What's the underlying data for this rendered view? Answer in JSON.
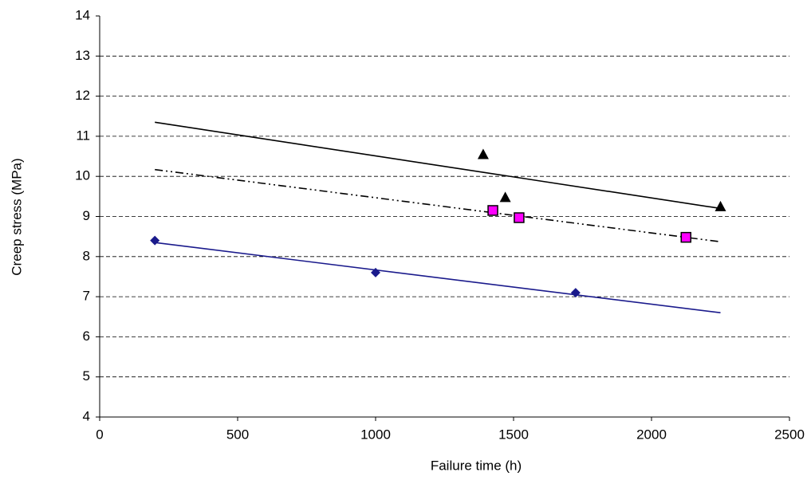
{
  "chart_data": {
    "type": "scatter",
    "x_label": "Failure time (h)",
    "y_label": "Creep stress (MPa)",
    "xlim": [
      0,
      2500
    ],
    "xticks": [
      0,
      500,
      1000,
      1500,
      2000,
      2500
    ],
    "ylim": [
      4,
      14
    ],
    "yticks": [
      4,
      5,
      6,
      7,
      8,
      9,
      10,
      11,
      12,
      13,
      14
    ],
    "grid": true,
    "series": [
      {
        "marker": "diamond",
        "color": "#1a1a8c",
        "x": [
          200,
          1000,
          1725
        ],
        "values": [
          8.4,
          7.6,
          7.1
        ],
        "trend": {
          "style": "solid",
          "color": "#1a1a8c",
          "x": [
            200,
            2250
          ],
          "values": [
            8.35,
            6.6
          ]
        }
      },
      {
        "marker": "square",
        "color": "#ff00ff",
        "x": [
          1425,
          1520,
          2125
        ],
        "values": [
          9.15,
          8.97,
          8.48
        ],
        "trend": {
          "style": "dashdot",
          "color": "#000000",
          "x": [
            200,
            2250
          ],
          "values": [
            10.17,
            8.37
          ]
        }
      },
      {
        "marker": "triangle",
        "color": "#000000",
        "x": [
          1390,
          1470,
          2250
        ],
        "values": [
          10.55,
          9.48,
          9.25
        ],
        "trend": {
          "style": "solid",
          "color": "#000000",
          "x": [
            200,
            2250
          ],
          "values": [
            11.35,
            9.2
          ]
        }
      }
    ]
  }
}
